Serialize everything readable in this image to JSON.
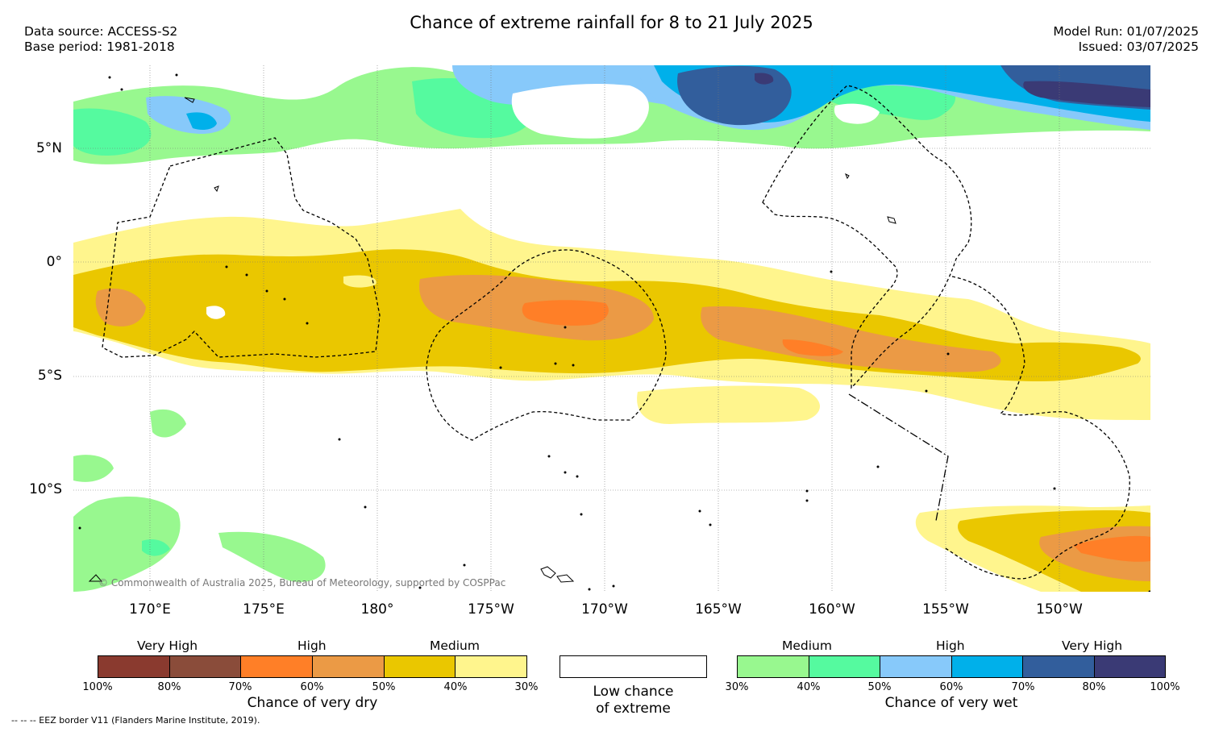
{
  "header": {
    "title": "Chance of extreme rainfall for 8 to 21 July 2025",
    "data_source": "Data source: ACCESS-S2",
    "base_period": "Base period: 1981-2018",
    "model_run": "Model Run: 01/07/2025",
    "issued": "Issued: 03/07/2025"
  },
  "map": {
    "lat_labels": [
      "5°N",
      "0°",
      "5°S",
      "10°S"
    ],
    "lon_labels": [
      "170°E",
      "175°E",
      "180°",
      "175°W",
      "170°W",
      "165°W",
      "160°W",
      "155°W",
      "150°W"
    ],
    "copyright": "© Commonwealth of Australia 2025, Bureau of Meteorology, supported by COSPPac"
  },
  "legend": {
    "dry": {
      "category_labels": [
        "Very High",
        "High",
        "Medium"
      ],
      "tick_labels": [
        "100%",
        "80%",
        "70%",
        "60%",
        "50%",
        "40%",
        "30%"
      ],
      "title": "Chance of very dry",
      "colors": [
        "#8a3a2f",
        "#8a4c3a",
        "#ff7f27",
        "#eb9a45",
        "#eac700",
        "#fff58d"
      ]
    },
    "low": {
      "title_line1": "Low chance",
      "title_line2": "of extreme",
      "color": "#ffffff"
    },
    "wet": {
      "category_labels": [
        "Medium",
        "High",
        "Very High"
      ],
      "tick_labels": [
        "30%",
        "40%",
        "50%",
        "60%",
        "70%",
        "80%",
        "100%"
      ],
      "title": "Chance of very wet",
      "colors": [
        "#98f88f",
        "#55fa9f",
        "#87c9fa",
        "#00b0ea",
        "#325e9c",
        "#3a3a75"
      ]
    }
  },
  "footnote": "--  --  -- EEZ border V11 (Flanders Marine Institute, 2019)."
}
